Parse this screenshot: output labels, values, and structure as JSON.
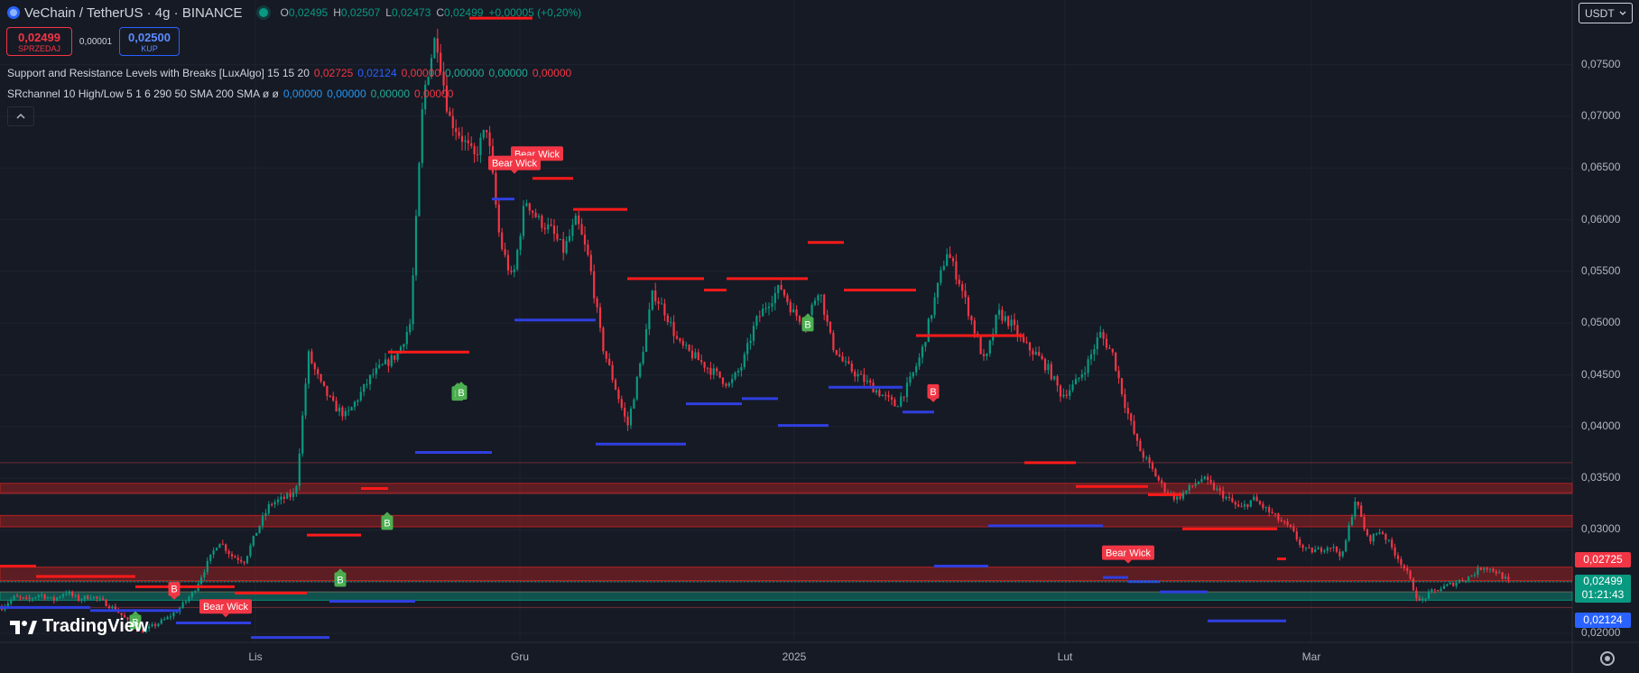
{
  "header": {
    "title": "VeChain / TetherUS · 4g · BINANCE",
    "ohlc": {
      "o_label": "O",
      "o": "0,02495",
      "h_label": "H",
      "h": "0,02507",
      "l_label": "L",
      "l": "0,02473",
      "c_label": "C",
      "c": "0,02499",
      "change": "+0,00005 (+0,20%)"
    }
  },
  "trade": {
    "sell_price": "0,02499",
    "sell_label": "SPRZEDAJ",
    "spread": "0,00001",
    "buy_price": "0,02500",
    "buy_label": "KUP"
  },
  "indicators": [
    {
      "name": "Support and Resistance Levels with Breaks [LuxAlgo] 15 15 20",
      "values": [
        "0,02725",
        "0,02124",
        "0,00000",
        "0,00000",
        "0,00000",
        "0,00000"
      ],
      "colors": [
        "#f23645",
        "#2962ff",
        "#f23645",
        "#22ab94",
        "#22ab94",
        "#f23645"
      ]
    },
    {
      "name": "SRchannel 10 High/Low 5 1 6 290 50 SMA 200 SMA  ø  ø",
      "values": [
        "0,00000",
        "0,00000",
        "0,00000",
        "0,00000"
      ],
      "colors": [
        "#2196f3",
        "#2196f3",
        "#22ab94",
        "#f23645"
      ]
    }
  ],
  "collapse_icon": "chevron-up-icon",
  "currency": {
    "label": "USDT",
    "icon": "chevron-down-icon"
  },
  "branding": {
    "name": "TradingView"
  },
  "tags": {
    "resistance": "0,02725",
    "last_price": "0,02499",
    "countdown": "01:21:43",
    "support": "0,02124"
  },
  "colors": {
    "up": "#089981",
    "down": "#f23645",
    "support": "#2962ff",
    "resistance": "#ff0000",
    "bg": "#161a25"
  },
  "chart_data": {
    "type": "candlestick",
    "x_tick_labels": [
      "Lis",
      "Gru",
      "2025",
      "Lut",
      "Mar"
    ],
    "y_tick_labels": [
      "0,07500",
      "0,07000",
      "0,06500",
      "0,06000",
      "0,05500",
      "0,05000",
      "0,04500",
      "0,04000",
      "0,03500",
      "0,03000",
      "0,02500",
      "0,02000"
    ],
    "ylim": [
      0.0195,
      0.0795
    ],
    "price_path": [
      0.0225,
      0.0235,
      0.0232,
      0.0238,
      0.0232,
      0.024,
      0.0233,
      0.0236,
      0.023,
      0.0222,
      0.021,
      0.0202,
      0.0208,
      0.0215,
      0.0225,
      0.024,
      0.0265,
      0.029,
      0.0275,
      0.027,
      0.03,
      0.0325,
      0.033,
      0.0335,
      0.047,
      0.044,
      0.042,
      0.041,
      0.043,
      0.045,
      0.046,
      0.047,
      0.05,
      0.072,
      0.078,
      0.07,
      0.068,
      0.066,
      0.069,
      0.058,
      0.054,
      0.062,
      0.06,
      0.059,
      0.057,
      0.06,
      0.056,
      0.048,
      0.044,
      0.04,
      0.046,
      0.053,
      0.051,
      0.048,
      0.047,
      0.046,
      0.045,
      0.044,
      0.046,
      0.05,
      0.052,
      0.0535,
      0.051,
      0.05,
      0.0535,
      0.048,
      0.046,
      0.045,
      0.044,
      0.043,
      0.042,
      0.044,
      0.047,
      0.052,
      0.057,
      0.054,
      0.05,
      0.046,
      0.051,
      0.05,
      0.048,
      0.047,
      0.0455,
      0.043,
      0.044,
      0.046,
      0.049,
      0.047,
      0.042,
      0.038,
      0.036,
      0.034,
      0.033,
      0.034,
      0.035,
      0.034,
      0.033,
      0.032,
      0.033,
      0.032,
      0.031,
      0.03,
      0.028,
      0.028,
      0.0285,
      0.0275,
      0.033,
      0.029,
      0.03,
      0.028,
      0.026,
      0.023,
      0.024,
      0.0245,
      0.025,
      0.0255,
      0.0265,
      0.026,
      0.025
    ],
    "resistance_levels": [
      {
        "x": [
          0,
          40
        ],
        "y": 0.0265
      },
      {
        "x": [
          40,
          150
        ],
        "y": 0.0255
      },
      {
        "x": [
          150,
          260
        ],
        "y": 0.0245
      },
      {
        "x": [
          260,
          340
        ],
        "y": 0.0239
      },
      {
        "x": [
          340,
          400
        ],
        "y": 0.0295
      },
      {
        "x": [
          400,
          430
        ],
        "y": 0.034
      },
      {
        "x": [
          430,
          520
        ],
        "y": 0.0472
      },
      {
        "x": [
          520,
          590
        ],
        "y": 0.0795
      },
      {
        "x": [
          590,
          635
        ],
        "y": 0.064
      },
      {
        "x": [
          635,
          695
        ],
        "y": 0.061
      },
      {
        "x": [
          695,
          780
        ],
        "y": 0.0543
      },
      {
        "x": [
          780,
          805
        ],
        "y": 0.0532
      },
      {
        "x": [
          805,
          895
        ],
        "y": 0.0543
      },
      {
        "x": [
          895,
          935
        ],
        "y": 0.0578
      },
      {
        "x": [
          935,
          1015
        ],
        "y": 0.0532
      },
      {
        "x": [
          1015,
          1135
        ],
        "y": 0.0488
      },
      {
        "x": [
          1135,
          1192
        ],
        "y": 0.0365
      },
      {
        "x": [
          1192,
          1272
        ],
        "y": 0.0342
      },
      {
        "x": [
          1272,
          1310
        ],
        "y": 0.0334
      },
      {
        "x": [
          1310,
          1415
        ],
        "y": 0.0301
      },
      {
        "x": [
          1415,
          1425
        ],
        "y": 0.0272
      }
    ],
    "support_levels": [
      {
        "x": [
          0,
          100
        ],
        "y": 0.0225
      },
      {
        "x": [
          100,
          200
        ],
        "y": 0.0222
      },
      {
        "x": [
          195,
          278
        ],
        "y": 0.021
      },
      {
        "x": [
          278,
          365
        ],
        "y": 0.0196
      },
      {
        "x": [
          365,
          460
        ],
        "y": 0.0231
      },
      {
        "x": [
          460,
          545
        ],
        "y": 0.0375
      },
      {
        "x": [
          545,
          570
        ],
        "y": 0.062
      },
      {
        "x": [
          570,
          660
        ],
        "y": 0.0503
      },
      {
        "x": [
          660,
          760
        ],
        "y": 0.0383
      },
      {
        "x": [
          760,
          822
        ],
        "y": 0.0422
      },
      {
        "x": [
          822,
          862
        ],
        "y": 0.0427
      },
      {
        "x": [
          862,
          918
        ],
        "y": 0.0401
      },
      {
        "x": [
          918,
          1000
        ],
        "y": 0.0438
      },
      {
        "x": [
          1000,
          1035
        ],
        "y": 0.0414
      },
      {
        "x": [
          1035,
          1095
        ],
        "y": 0.0265
      },
      {
        "x": [
          1095,
          1222
        ],
        "y": 0.0304
      },
      {
        "x": [
          1222,
          1250
        ],
        "y": 0.0254
      },
      {
        "x": [
          1250,
          1285
        ],
        "y": 0.025
      },
      {
        "x": [
          1285,
          1338
        ],
        "y": 0.024
      },
      {
        "x": [
          1338,
          1425
        ],
        "y": 0.0212
      }
    ],
    "zones": [
      {
        "y1": 0.0345,
        "y2": 0.0336,
        "color": "red"
      },
      {
        "y1": 0.0314,
        "y2": 0.0303,
        "color": "red"
      },
      {
        "y1": 0.0264,
        "y2": 0.0251,
        "color": "red"
      },
      {
        "y1": 0.024,
        "y2": 0.0232,
        "color": "green"
      }
    ],
    "thin_lines": [
      0.0365,
      0.0335,
      0.025,
      0.024,
      0.0225
    ],
    "labels": [
      {
        "text": "Bear Wick",
        "x": 595,
        "y": 0.0664,
        "kind": "bear"
      },
      {
        "text": "Bear Wick",
        "x": 570,
        "y": 0.0655,
        "kind": "bear"
      },
      {
        "text": "Bear Wick",
        "x": 250,
        "y": 0.0226,
        "kind": "bear"
      },
      {
        "text": "Bear Wick",
        "x": 1250,
        "y": 0.0278,
        "kind": "bear"
      },
      {
        "text": "B",
        "x": 193,
        "y": 0.0243,
        "kind": "bear"
      },
      {
        "text": "B",
        "x": 1034,
        "y": 0.0434,
        "kind": "bear"
      },
      {
        "text": "B",
        "x": 150,
        "y": 0.0211,
        "kind": "bull"
      },
      {
        "text": "B",
        "x": 377,
        "y": 0.0252,
        "kind": "bull"
      },
      {
        "text": "B",
        "x": 429,
        "y": 0.0307,
        "kind": "bull"
      },
      {
        "text": "B",
        "x": 507,
        "y": 0.0432,
        "kind": "bull"
      },
      {
        "text": "B",
        "x": 511,
        "y": 0.0433,
        "kind": "bull"
      },
      {
        "text": "B",
        "x": 895,
        "y": 0.0499,
        "kind": "bull"
      }
    ]
  }
}
